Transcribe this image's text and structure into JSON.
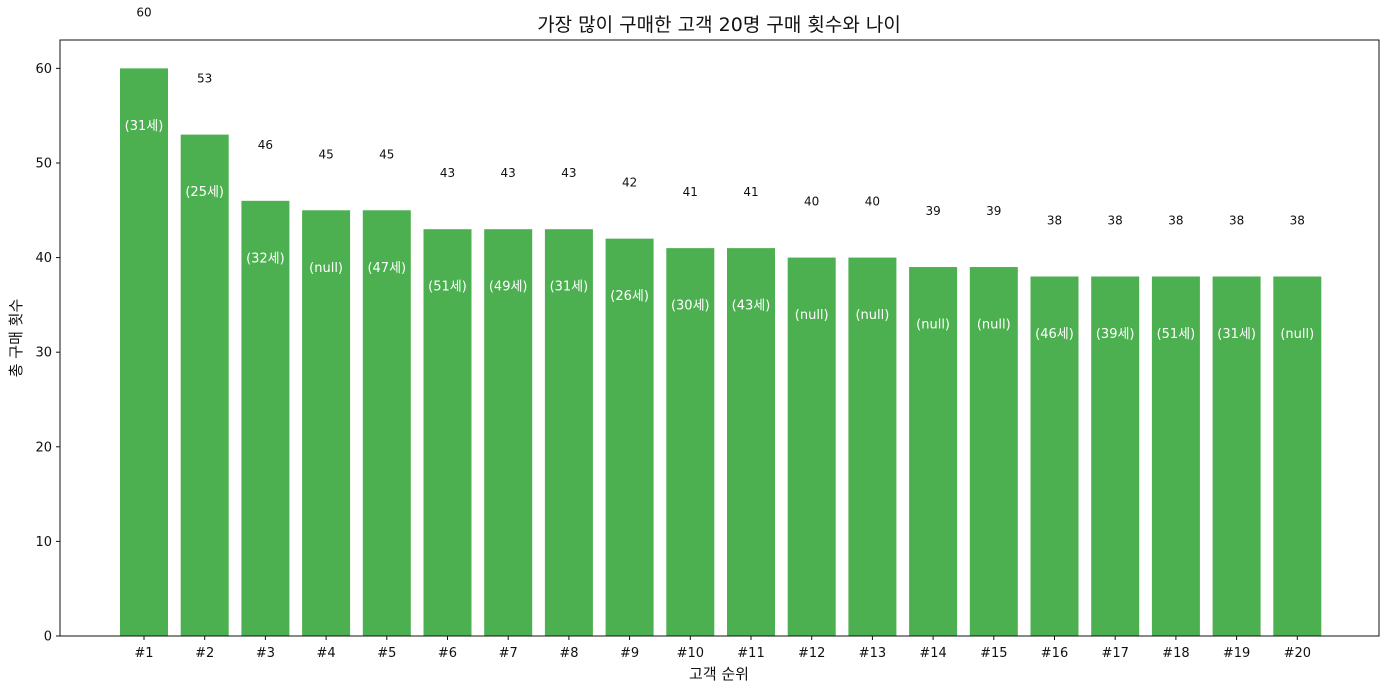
{
  "chart_data": {
    "type": "bar",
    "title": "가장 많이 구매한 고객 20명 구매 횟수와 나이",
    "xlabel": "고객 순위",
    "ylabel": "총 구매 횟수",
    "categories": [
      "#1",
      "#2",
      "#3",
      "#4",
      "#5",
      "#6",
      "#7",
      "#8",
      "#9",
      "#10",
      "#11",
      "#12",
      "#13",
      "#14",
      "#15",
      "#16",
      "#17",
      "#18",
      "#19",
      "#20"
    ],
    "values": [
      60,
      53,
      46,
      45,
      45,
      43,
      43,
      43,
      42,
      41,
      41,
      40,
      40,
      39,
      39,
      38,
      38,
      38,
      38,
      38
    ],
    "value_labels": [
      "60",
      "53",
      "46",
      "45",
      "45",
      "43",
      "43",
      "43",
      "42",
      "41",
      "41",
      "40",
      "40",
      "39",
      "39",
      "38",
      "38",
      "38",
      "38",
      "38"
    ],
    "age_labels": [
      "(31세)",
      "(25세)",
      "(32세)",
      "(null)",
      "(47세)",
      "(51세)",
      "(49세)",
      "(31세)",
      "(26세)",
      "(30세)",
      "(43세)",
      "(null)",
      "(null)",
      "(null)",
      "(null)",
      "(46세)",
      "(39세)",
      "(51세)",
      "(31세)",
      "(null)"
    ],
    "yticks": [
      0,
      10,
      20,
      30,
      40,
      50,
      60
    ],
    "ylim": [
      0,
      63
    ],
    "bar_color": "#4caf50",
    "grid": false,
    "legend": "none"
  }
}
